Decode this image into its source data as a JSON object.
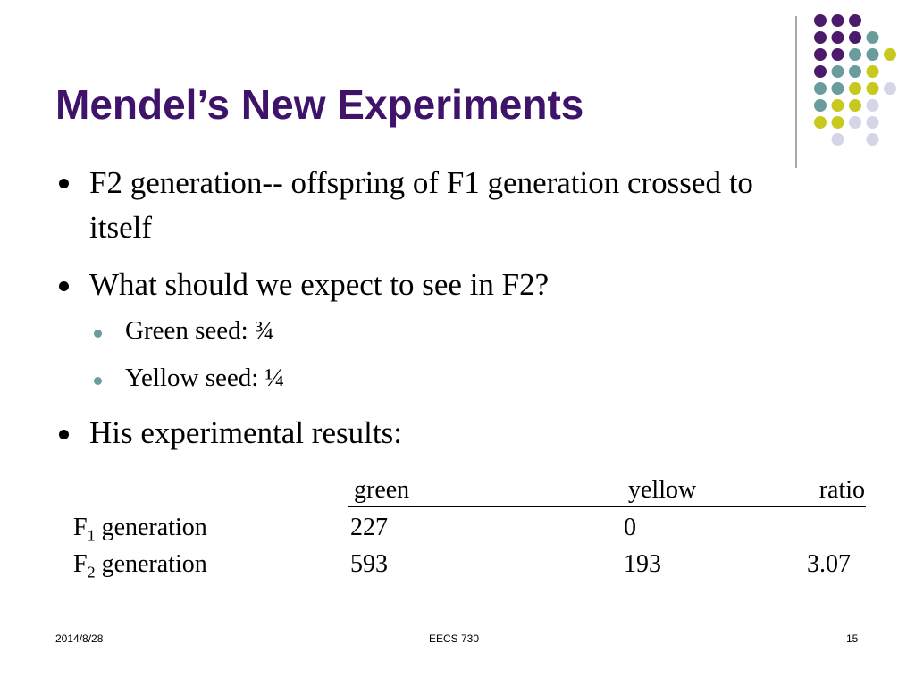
{
  "title": "Mendel’s New Experiments",
  "bullets": [
    {
      "text": "F2 generation-- offspring of F1 generation crossed to itself"
    },
    {
      "text": "What should we expect to see in F2?",
      "sub": [
        "Green seed: ¾",
        "Yellow seed: ¼"
      ]
    },
    {
      "text": "His experimental results:"
    }
  ],
  "table": {
    "header": [
      "green",
      "yellow",
      "ratio"
    ],
    "rows": [
      {
        "label": [
          "F",
          "1",
          " generation"
        ],
        "green": 227,
        "yellow": 0
      },
      {
        "label": [
          "F",
          "2",
          " generation"
        ],
        "green": 593,
        "yellow": 193,
        "ratio": 3.07
      }
    ]
  },
  "footer": {
    "date": "2014/8/28",
    "course": "EECS 730",
    "page": "15"
  }
}
